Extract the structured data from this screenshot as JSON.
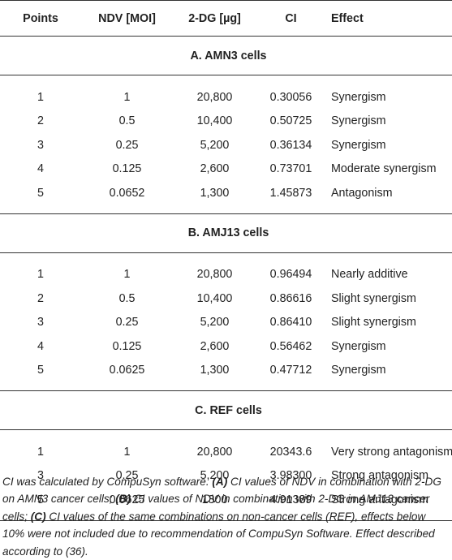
{
  "table": {
    "headers": [
      "Points",
      "NDV [MOI]",
      "2-DG [µg]",
      "CI",
      "Effect"
    ],
    "sections": [
      {
        "title": "A. AMN3 cells",
        "rows": [
          [
            "1",
            "1",
            "20,800",
            "0.30056",
            "Synergism"
          ],
          [
            "2",
            "0.5",
            "10,400",
            "0.50725",
            "Synergism"
          ],
          [
            "3",
            "0.25",
            "5,200",
            "0.36134",
            "Synergism"
          ],
          [
            "4",
            "0.125",
            "2,600",
            "0.73701",
            "Moderate synergism"
          ],
          [
            "5",
            "0.0652",
            "1,300",
            "1.45873",
            "Antagonism"
          ]
        ]
      },
      {
        "title": "B. AMJ13 cells",
        "rows": [
          [
            "1",
            "1",
            "20,800",
            "0.96494",
            "Nearly additive"
          ],
          [
            "2",
            "0.5",
            "10,400",
            "0.86616",
            "Slight synergism"
          ],
          [
            "3",
            "0.25",
            "5,200",
            "0.86410",
            "Slight synergism"
          ],
          [
            "4",
            "0.125",
            "2,600",
            "0.56462",
            "Synergism"
          ],
          [
            "5",
            "0.0625",
            "1,300",
            "0.47712",
            "Synergism"
          ]
        ]
      },
      {
        "title": "C. REF cells",
        "rows": [
          [
            "1",
            "1",
            "20,800",
            "20343.6",
            "Very strong antagonism"
          ],
          [
            "3",
            "0.25",
            "5,200",
            "3.98300",
            "Strong antagonism"
          ],
          [
            "5",
            "0.0625",
            "1300",
            "4.91389",
            "Strong antagonism"
          ]
        ]
      }
    ]
  },
  "footnote": {
    "intro": "CI was calculated by CompuSyn software. ",
    "a_label": "(A)",
    "a_text": " CI values of NDV in combination with 2-DG on AMN3 cancer cells; ",
    "b_label": "(B)",
    "b_text": " CI values of NDV in combination with 2-DG in AMJ13 cancer cells; ",
    "c_label": "(C)",
    "c_text": " CI values of the same combinations on non-cancer cells (REF), effects below 10% were not included due to recommendation of CompuSyn Software. Effect described according to (36)."
  }
}
